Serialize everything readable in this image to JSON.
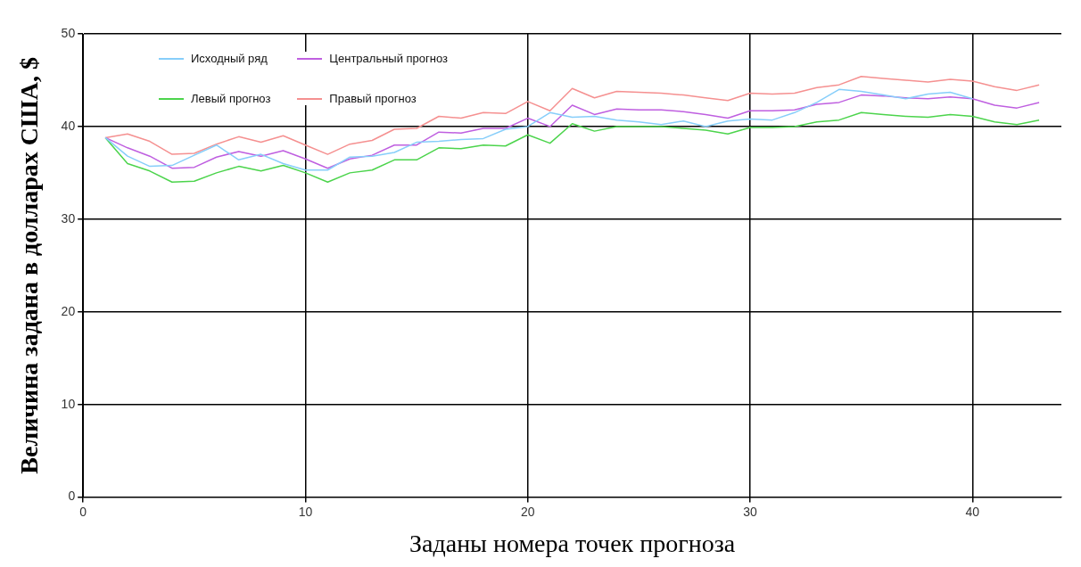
{
  "chart_data": {
    "type": "line",
    "xlabel": "Заданы номера точек прогноза",
    "ylabel": "Величина задана в долларах США, $",
    "x": [
      1,
      2,
      3,
      4,
      5,
      6,
      7,
      8,
      9,
      10,
      11,
      12,
      13,
      14,
      15,
      16,
      17,
      18,
      19,
      20,
      21,
      22,
      23,
      24,
      25,
      26,
      27,
      28,
      29,
      30,
      31,
      32,
      33,
      34,
      35,
      36,
      37,
      38,
      39,
      40,
      41,
      42,
      43
    ],
    "series": [
      {
        "name": "Исходный ряд",
        "color": "#87cefa",
        "values": [
          38.8,
          36.8,
          35.7,
          35.8,
          36.9,
          38.0,
          36.4,
          37.0,
          36.0,
          35.3,
          35.3,
          36.7,
          36.8,
          37.2,
          38.3,
          38.4,
          38.6,
          38.7,
          39.7,
          40.0,
          41.5,
          41.0,
          41.1,
          40.7,
          40.5,
          40.2,
          40.6,
          40.0,
          40.6,
          40.8,
          40.7,
          41.5,
          42.6,
          44.0,
          43.8,
          43.4,
          43.0,
          43.5,
          43.7,
          43.0,
          null,
          null,
          null
        ]
      },
      {
        "name": "Центральный прогноз",
        "color": "#bf5fe0",
        "values": [
          38.8,
          37.7,
          36.8,
          35.5,
          35.6,
          36.7,
          37.3,
          36.8,
          37.4,
          36.5,
          35.5,
          36.5,
          36.9,
          38.0,
          38.0,
          39.4,
          39.3,
          39.8,
          39.8,
          40.9,
          40.0,
          42.3,
          41.3,
          41.9,
          41.8,
          41.8,
          41.6,
          41.3,
          40.9,
          41.7,
          41.7,
          41.8,
          42.4,
          42.6,
          43.4,
          43.3,
          43.1,
          43.0,
          43.2,
          43.0,
          42.3,
          42.0,
          42.6
        ]
      },
      {
        "name": "Левый прогноз",
        "color": "#4cd44c",
        "values": [
          38.8,
          36.0,
          35.2,
          34.0,
          34.1,
          35.0,
          35.7,
          35.2,
          35.8,
          35.0,
          34.0,
          35.0,
          35.3,
          36.4,
          36.4,
          37.7,
          37.6,
          38.0,
          37.9,
          39.1,
          38.2,
          40.3,
          39.5,
          40.0,
          40.0,
          40.0,
          39.8,
          39.6,
          39.2,
          39.9,
          39.9,
          40.0,
          40.5,
          40.7,
          41.5,
          41.3,
          41.1,
          41.0,
          41.3,
          41.1,
          40.5,
          40.2,
          40.7
        ]
      },
      {
        "name": "Правый прогноз",
        "color": "#f59090",
        "values": [
          38.8,
          39.2,
          38.4,
          37.0,
          37.1,
          38.1,
          38.9,
          38.3,
          39.0,
          38.0,
          37.0,
          38.1,
          38.5,
          39.7,
          39.8,
          41.1,
          40.9,
          41.5,
          41.4,
          42.7,
          41.7,
          44.1,
          43.1,
          43.8,
          43.7,
          43.6,
          43.4,
          43.1,
          42.8,
          43.6,
          43.5,
          43.6,
          44.2,
          44.5,
          45.4,
          45.2,
          45.0,
          44.8,
          45.1,
          44.9,
          44.3,
          43.9,
          44.5
        ]
      }
    ],
    "xlim": [
      0,
      44
    ],
    "xticks": [
      0,
      10,
      20,
      30,
      40
    ],
    "ylim": [
      0,
      50
    ],
    "yticks": [
      0,
      10,
      20,
      30,
      40,
      50
    ],
    "grid": true,
    "legend": "top left",
    "marker": "none",
    "line_style": "solid"
  }
}
